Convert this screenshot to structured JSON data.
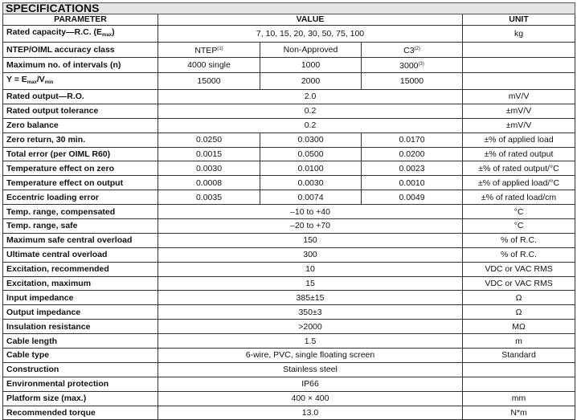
{
  "title": "SPECIFICATIONS",
  "headers": {
    "parameter": "PARAMETER",
    "value": "VALUE",
    "unit": "UNIT"
  },
  "rows_special": {
    "rated_capacity": {
      "label_pre": "Rated capacity—R.C. (E",
      "label_sub": "max",
      "label_post": ")",
      "value": "7, 10, 15, 20, 30, 50, 75, 100",
      "unit": "kg"
    },
    "accuracy_class": {
      "label": "NTEP/OIML accuracy class",
      "v1": "NTEP",
      "v1_sup": "(1)",
      "v2": "Non-Approved",
      "v3": "C3",
      "v3_sup": "(2)",
      "unit": ""
    },
    "intervals": {
      "label": "Maximum no. of intervals (n)",
      "v1": "4000 single",
      "v2": "1000",
      "v3": "3000",
      "v3_sup": "(3)",
      "unit": ""
    },
    "y_ratio": {
      "label_a": "Y = E",
      "sub_a": "max",
      "label_b": "/V",
      "sub_b": "min",
      "v1": "15000",
      "v2": "2000",
      "v3": "15000",
      "unit": ""
    }
  },
  "rows": [
    {
      "label": "Rated output—R.O.",
      "value": "2.0",
      "unit": "mV/V"
    },
    {
      "label": "Rated output tolerance",
      "value": "0.2",
      "unit": "±mV/V"
    },
    {
      "label": "Zero balance",
      "value": "0.2",
      "unit": "±mV/V"
    },
    {
      "label": "Zero return, 30 min.",
      "values": [
        "0.0250",
        "0.0300",
        "0.0170"
      ],
      "unit": "±% of applied load"
    },
    {
      "label": "Total error (per OIML R60)",
      "values": [
        "0.0015",
        "0.0500",
        "0.0200"
      ],
      "unit": "±% of rated output"
    },
    {
      "label": "Temperature effect on zero",
      "values": [
        "0.0030",
        "0.0100",
        "0.0023"
      ],
      "unit": "±% of rated output/°C"
    },
    {
      "label": "Temperature effect on output",
      "values": [
        "0.0008",
        "0.0030",
        "0.0010"
      ],
      "unit": "±% of applied load/°C"
    },
    {
      "label": "Eccentric loading error",
      "values": [
        "0.0035",
        "0.0074",
        "0.0049"
      ],
      "unit": "±% of rated load/cm"
    },
    {
      "label": "Temp. range, compensated",
      "value": "–10 to +40",
      "unit": "°C"
    },
    {
      "label": "Temp. range, safe",
      "value": "–20 to +70",
      "unit": "°C"
    },
    {
      "label": "Maximum safe central overload",
      "value": "150",
      "unit": "% of R.C."
    },
    {
      "label": "Ultimate central overload",
      "value": "300",
      "unit": "% of R.C."
    },
    {
      "label": "Excitation, recommended",
      "value": "10",
      "unit": "VDC or VAC RMS"
    },
    {
      "label": "Excitation, maximum",
      "value": "15",
      "unit": "VDC or VAC RMS"
    },
    {
      "label": "Input impedance",
      "value": "385±15",
      "unit": "Ω"
    },
    {
      "label": "Output impedance",
      "value": "350±3",
      "unit": "Ω"
    },
    {
      "label": "Insulation resistance",
      "value": ">2000",
      "unit": "MΩ"
    },
    {
      "label": "Cable length",
      "value": "1.5",
      "unit": "m"
    },
    {
      "label": "Cable type",
      "value": "6-wire, PVC, single floating screen",
      "unit": "Standard"
    },
    {
      "label": "Construction",
      "value": "Stainless steel",
      "unit": ""
    },
    {
      "label": "Environmental protection",
      "value": "IP66",
      "unit": ""
    },
    {
      "label": "Platform size (max.)",
      "value": "400 × 400",
      "unit": "mm"
    },
    {
      "label": "Recommended torque",
      "value": "13.0",
      "unit": "N*m"
    }
  ]
}
